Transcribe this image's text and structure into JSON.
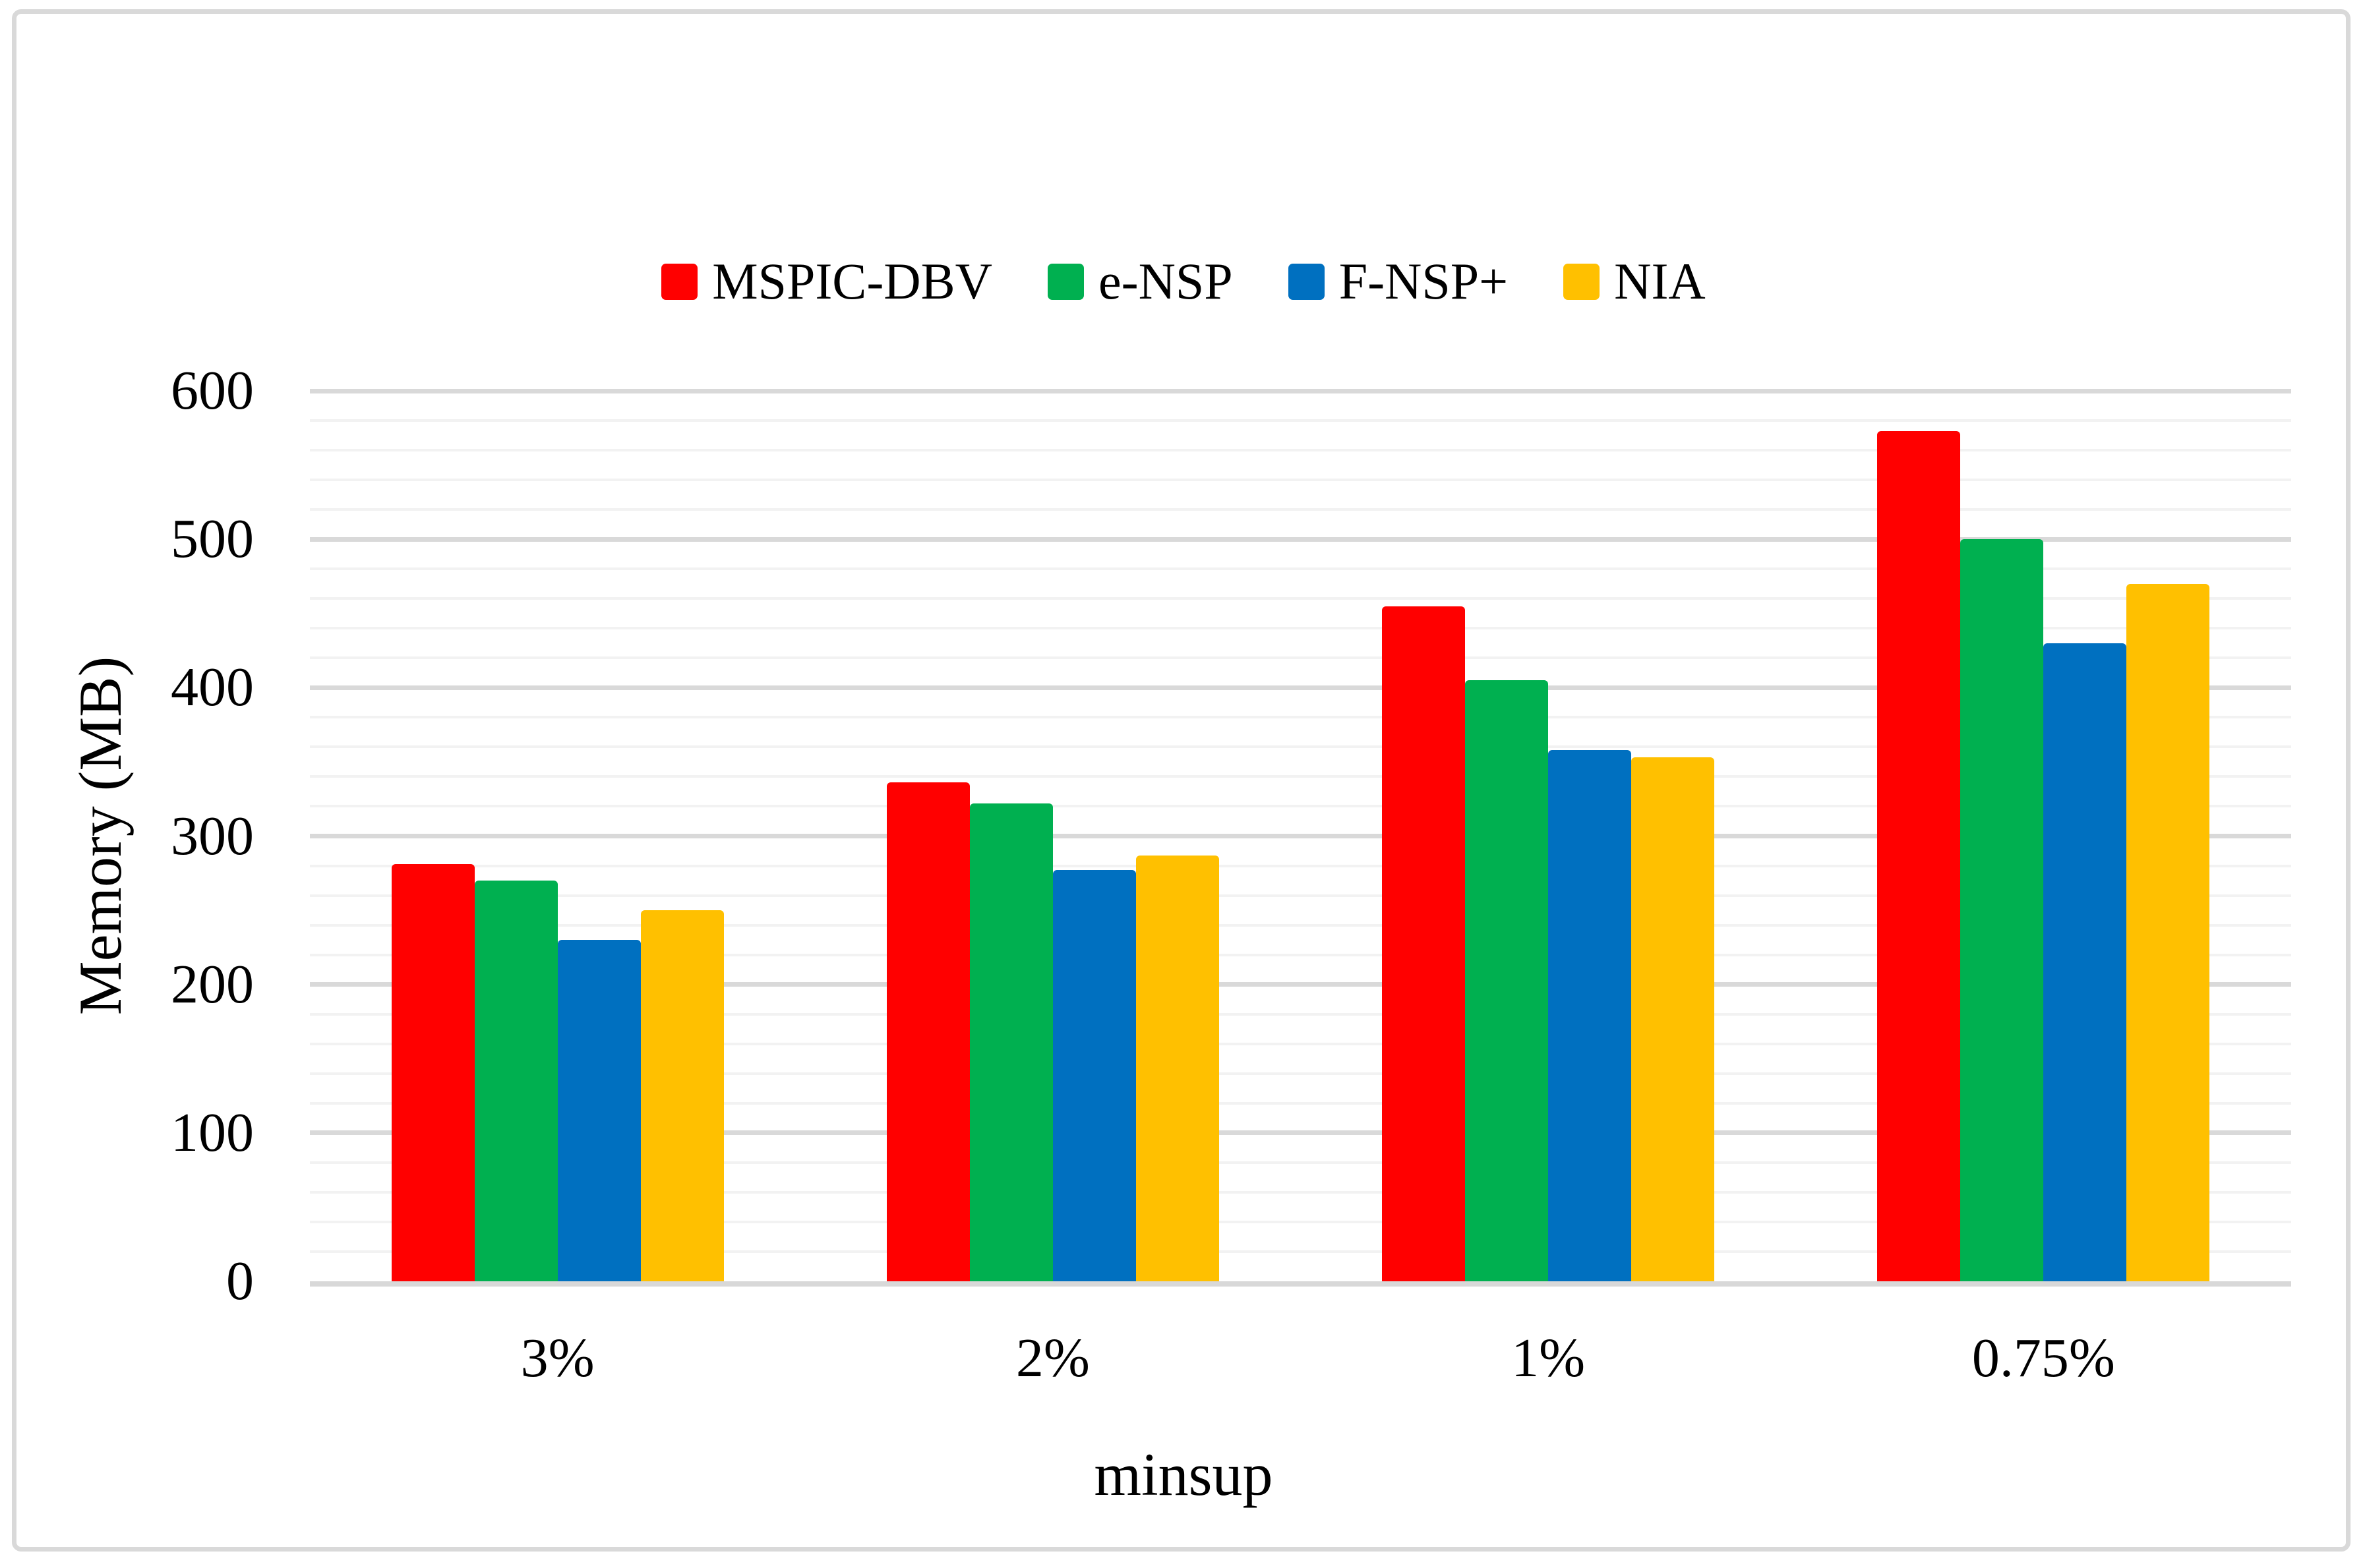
{
  "chart_data": {
    "type": "bar",
    "title": "",
    "categories": [
      "3%",
      "2%",
      "1%",
      "0.75%"
    ],
    "series": [
      {
        "name": "MSPIC-DBV",
        "color": "#FF0000",
        "values": [
          281,
          336,
          455,
          573
        ]
      },
      {
        "name": "e-NSP",
        "color": "#00B050",
        "values": [
          270,
          322,
          405,
          500
        ]
      },
      {
        "name": "F-NSP+",
        "color": "#0070C0",
        "values": [
          230,
          277,
          358,
          430
        ]
      },
      {
        "name": "NIA",
        "color": "#FFC000",
        "values": [
          250,
          287,
          353,
          470
        ]
      }
    ],
    "xlabel": "minsup",
    "ylabel": "Memory (MB)",
    "ylim": [
      0,
      600
    ],
    "ytick_step": 100,
    "minor_gridline_step": 20,
    "grid": true,
    "legend_position": "top-center"
  },
  "axes": {
    "y_tick_labels": [
      "0",
      "100",
      "200",
      "300",
      "400",
      "500",
      "600"
    ]
  },
  "style_colors": {
    "minor_gridline": "#F2F2F2",
    "major_gridline": "#D9D9D9",
    "axis_line": "#D8D8D8",
    "chart_border": "#D9D9D9",
    "text": "#000000",
    "background": "#FFFFFF"
  }
}
